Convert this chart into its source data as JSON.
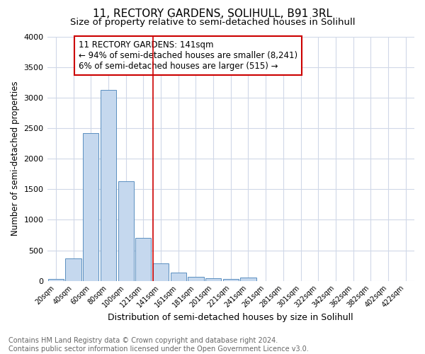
{
  "title": "11, RECTORY GARDENS, SOLIHULL, B91 3RL",
  "subtitle": "Size of property relative to semi-detached houses in Solihull",
  "xlabel": "Distribution of semi-detached houses by size in Solihull",
  "ylabel": "Number of semi-detached properties",
  "footer": "Contains HM Land Registry data © Crown copyright and database right 2024.\nContains public sector information licensed under the Open Government Licence v3.0.",
  "bar_labels": [
    "20sqm",
    "40sqm",
    "60sqm",
    "80sqm",
    "100sqm",
    "121sqm",
    "141sqm",
    "161sqm",
    "181sqm",
    "201sqm",
    "221sqm",
    "241sqm",
    "261sqm",
    "281sqm",
    "301sqm",
    "322sqm",
    "342sqm",
    "362sqm",
    "382sqm",
    "402sqm",
    "422sqm"
  ],
  "bar_values": [
    30,
    370,
    2420,
    3130,
    1630,
    700,
    290,
    130,
    60,
    45,
    30,
    50,
    0,
    0,
    0,
    0,
    0,
    0,
    0,
    0,
    0
  ],
  "bar_color": "#c5d8ee",
  "bar_edge_color": "#5a8fc0",
  "vline_index": 6,
  "vline_color": "#cc0000",
  "annotation_title": "11 RECTORY GARDENS: 141sqm",
  "annotation_line1": "← 94% of semi-detached houses are smaller (8,241)",
  "annotation_line2": "6% of semi-detached houses are larger (515) →",
  "annotation_box_color": "#cc0000",
  "ylim": [
    0,
    4000
  ],
  "yticks": [
    0,
    500,
    1000,
    1500,
    2000,
    2500,
    3000,
    3500,
    4000
  ],
  "background_color": "#ffffff",
  "grid_color": "#d0d8e8",
  "title_fontsize": 11,
  "subtitle_fontsize": 9.5,
  "xlabel_fontsize": 9,
  "ylabel_fontsize": 8.5,
  "footer_fontsize": 7,
  "annotation_fontsize": 8.5
}
